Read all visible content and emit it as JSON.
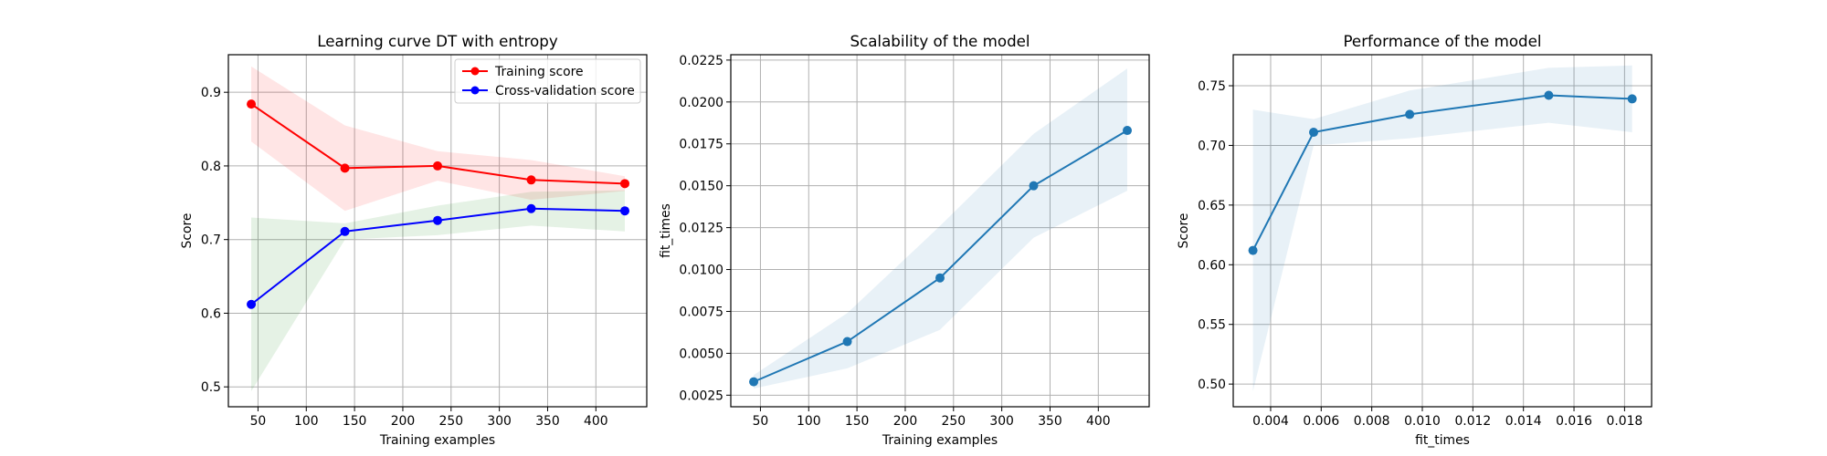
{
  "chart_data": [
    {
      "type": "line",
      "title": "Learning curve DT with entropy",
      "xlabel": "Training examples",
      "ylabel": "Score",
      "xlim": [
        19.3,
        452.7
      ],
      "ylim": [
        0.473,
        0.951
      ],
      "x_ticks": [
        50,
        100,
        150,
        200,
        250,
        300,
        350,
        400
      ],
      "y_ticks": [
        0.5,
        0.6,
        0.7,
        0.8,
        0.9
      ],
      "y_tick_format": "1",
      "grid": true,
      "legend": "top-right",
      "series": [
        {
          "name": "Training score",
          "color": "#ff0000",
          "x": [
            43,
            140,
            236,
            333,
            430
          ],
          "y": [
            0.884,
            0.797,
            0.8,
            0.781,
            0.776
          ],
          "band_color": "#ff0000",
          "band_upper": [
            0.935,
            0.855,
            0.82,
            0.808,
            0.786
          ],
          "band_lower": [
            0.833,
            0.739,
            0.78,
            0.754,
            0.766
          ]
        },
        {
          "name": "Cross-validation score",
          "color": "#0000ff",
          "x": [
            43,
            140,
            236,
            333,
            430
          ],
          "y": [
            0.612,
            0.711,
            0.726,
            0.742,
            0.739
          ],
          "band_color": "#008000",
          "band_upper": [
            0.73,
            0.722,
            0.746,
            0.765,
            0.767
          ],
          "band_lower": [
            0.494,
            0.7,
            0.706,
            0.719,
            0.711
          ]
        }
      ]
    },
    {
      "type": "line",
      "title": "Scalability of the model",
      "xlabel": "Training examples",
      "ylabel": "fit_times",
      "xlim": [
        19.3,
        452.7
      ],
      "ylim": [
        0.00181,
        0.02282
      ],
      "x_ticks": [
        50,
        100,
        150,
        200,
        250,
        300,
        350,
        400
      ],
      "y_ticks": [
        0.0025,
        0.005,
        0.0075,
        0.01,
        0.0125,
        0.015,
        0.0175,
        0.02,
        0.0225
      ],
      "y_tick_format": "4",
      "grid": true,
      "series": [
        {
          "color": "#1f77b4",
          "x": [
            43,
            140,
            236,
            333,
            430
          ],
          "y": [
            0.0033,
            0.0057,
            0.0095,
            0.015,
            0.0183
          ],
          "band_color": "#1f77b4",
          "band_upper": [
            0.0037,
            0.0074,
            0.0126,
            0.0181,
            0.022
          ],
          "band_lower": [
            0.0029,
            0.0041,
            0.0064,
            0.0119,
            0.0147
          ]
        }
      ]
    },
    {
      "type": "line",
      "title": "Performance of the model",
      "xlabel": "fit_times",
      "ylabel": "Score",
      "xlim": [
        0.00252,
        0.01907
      ],
      "ylim": [
        0.481,
        0.776
      ],
      "x_ticks": [
        0.004,
        0.006,
        0.008,
        0.01,
        0.012,
        0.014,
        0.016,
        0.018
      ],
      "x_tick_format": "3",
      "y_ticks": [
        0.5,
        0.55,
        0.6,
        0.65,
        0.7,
        0.75
      ],
      "y_tick_format": "2",
      "grid": true,
      "series": [
        {
          "color": "#1f77b4",
          "x": [
            0.0033,
            0.0057,
            0.0095,
            0.015,
            0.0183
          ],
          "y": [
            0.612,
            0.711,
            0.726,
            0.742,
            0.739
          ],
          "band_color": "#1f77b4",
          "band_upper": [
            0.73,
            0.722,
            0.746,
            0.765,
            0.767
          ],
          "band_lower": [
            0.494,
            0.7,
            0.706,
            0.719,
            0.711
          ]
        }
      ]
    }
  ]
}
